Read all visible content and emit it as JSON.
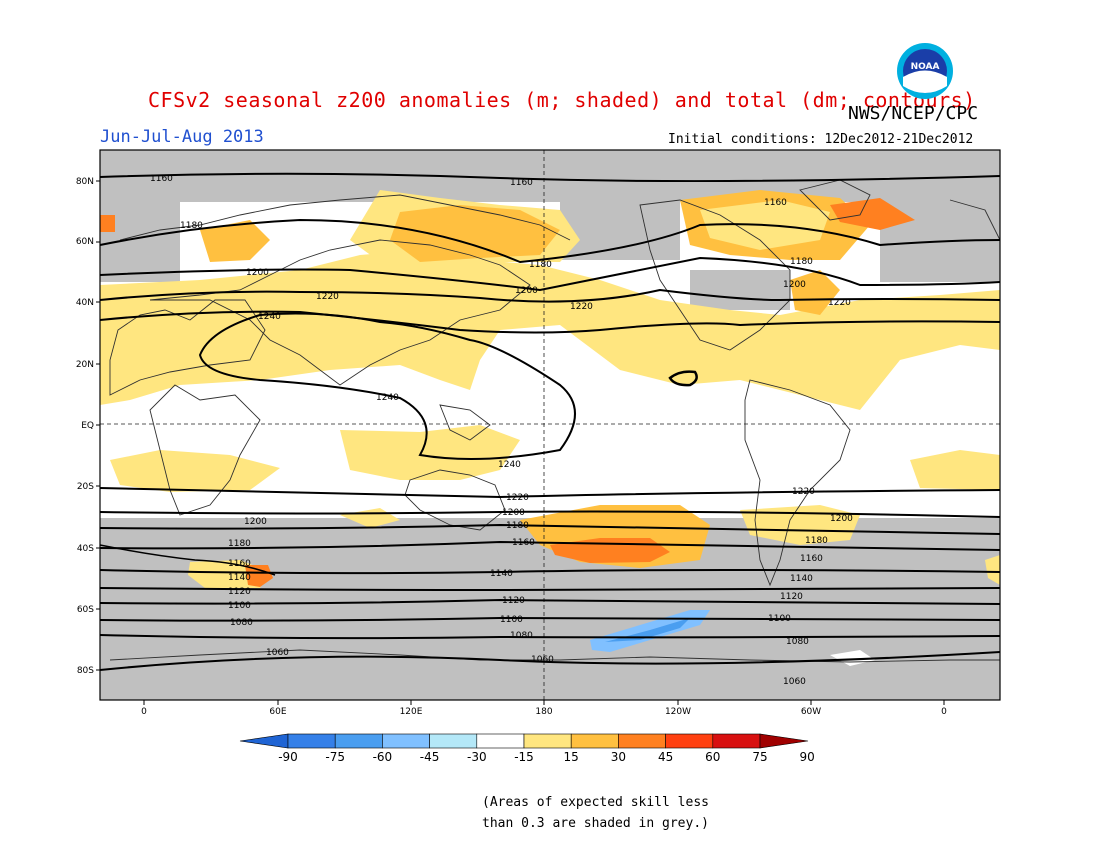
{
  "header": {
    "title": "CFSv2 seasonal z200 anomalies (m; shaded) and total (dm; contours)",
    "agency": "NWS/NCEP/CPC",
    "period": "Jun-Jul-Aug 2013",
    "initial_conditions": "Initial conditions: 12Dec2012-21Dec2012",
    "logo_text": "NOAA"
  },
  "map": {
    "lat_labels": [
      "80N",
      "60N",
      "40N",
      "20N",
      "EQ",
      "20S",
      "40S",
      "60S",
      "80S"
    ],
    "lon_labels": [
      "0",
      "60E",
      "120E",
      "180",
      "120W",
      "60W",
      "0"
    ],
    "contour_labels": [
      "1160",
      "1180",
      "1200",
      "1220",
      "1240",
      "1140",
      "1120",
      "1100",
      "1080",
      "1060"
    ],
    "colors": {
      "skill_grey": "#c0c0c0",
      "pos_15_30": "#ffe680",
      "pos_30_45": "#ffc040",
      "pos_45_60": "#ff8020",
      "neg_30_45": "#80c0ff",
      "neg_45_60": "#4a9ef0"
    }
  },
  "colorbar": {
    "labels": [
      "-90",
      "-75",
      "-60",
      "-45",
      "-30",
      "-15",
      "15",
      "30",
      "45",
      "60",
      "75",
      "90"
    ],
    "colors": [
      "#1f64d4",
      "#3580e8",
      "#4a9ef0",
      "#80c0ff",
      "#b4e8f8",
      "#ffffff",
      "#ffe680",
      "#ffc040",
      "#ff8020",
      "#ff4010",
      "#d81010",
      "#a00000"
    ]
  },
  "footnote": {
    "line1": "(Areas of expected skill less",
    "line2": "than 0.3 are shaded in grey.)"
  }
}
